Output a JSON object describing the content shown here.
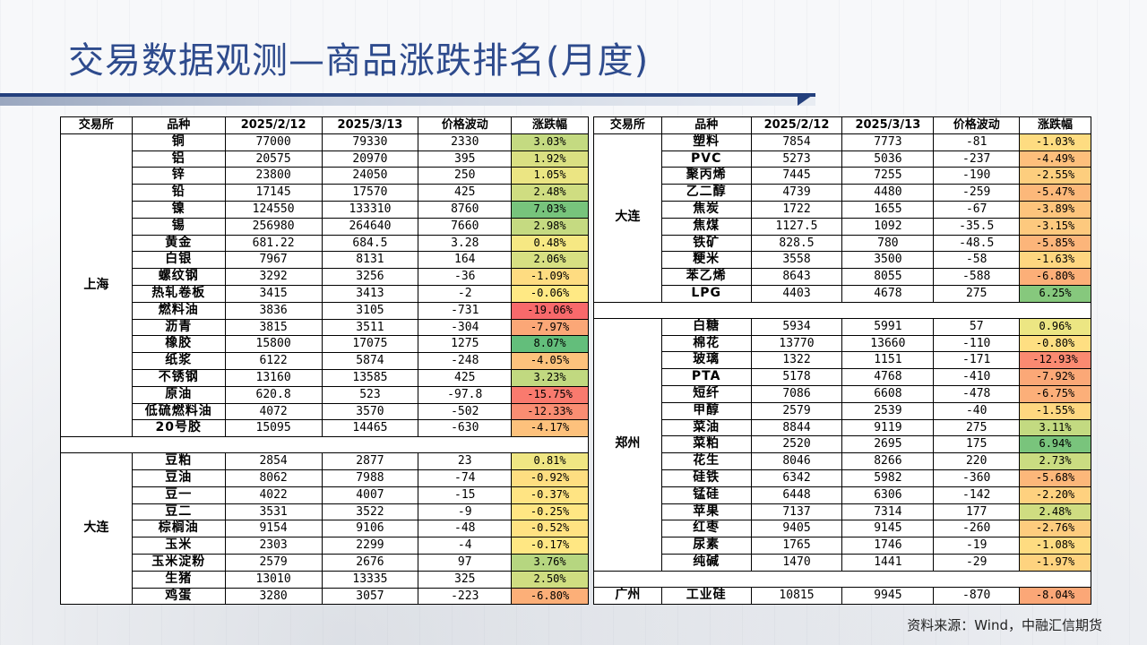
{
  "title": "交易数据观测—商品涨跌排名(月度)",
  "source": "资料来源：Wind，中融汇信期货",
  "headers": [
    "交易所",
    "品种",
    "2025/2/12",
    "2025/3/13",
    "价格波动",
    "涨跌幅"
  ],
  "colors": {
    "green": "#63be7b",
    "yellow": "#ffeb84",
    "red": "#f8696b",
    "title": "#2e4b8d"
  },
  "left_groups": [
    {
      "exchange": "上海",
      "rows": [
        [
          "铜",
          "77000",
          "79330",
          "2330",
          "3.03%",
          3.03
        ],
        [
          "铝",
          "20575",
          "20970",
          "395",
          "1.92%",
          1.92
        ],
        [
          "锌",
          "23800",
          "24050",
          "250",
          "1.05%",
          1.05
        ],
        [
          "铅",
          "17145",
          "17570",
          "425",
          "2.48%",
          2.48
        ],
        [
          "镍",
          "124550",
          "133310",
          "8760",
          "7.03%",
          7.03
        ],
        [
          "锡",
          "256980",
          "264640",
          "7660",
          "2.98%",
          2.98
        ],
        [
          "黄金",
          "681.22",
          "684.5",
          "3.28",
          "0.48%",
          0.48
        ],
        [
          "白银",
          "7967",
          "8131",
          "164",
          "2.06%",
          2.06
        ],
        [
          "螺纹钢",
          "3292",
          "3256",
          "-36",
          "-1.09%",
          -1.09
        ],
        [
          "热轧卷板",
          "3415",
          "3413",
          "-2",
          "-0.06%",
          -0.06
        ],
        [
          "燃料油",
          "3836",
          "3105",
          "-731",
          "-19.06%",
          -19.06
        ],
        [
          "沥青",
          "3815",
          "3511",
          "-304",
          "-7.97%",
          -7.97
        ],
        [
          "橡胶",
          "15800",
          "17075",
          "1275",
          "8.07%",
          8.07
        ],
        [
          "纸浆",
          "6122",
          "5874",
          "-248",
          "-4.05%",
          -4.05
        ],
        [
          "不锈钢",
          "13160",
          "13585",
          "425",
          "3.23%",
          3.23
        ],
        [
          "原油",
          "620.8",
          "523",
          "-97.8",
          "-15.75%",
          -15.75
        ],
        [
          "低硫燃料油",
          "4072",
          "3570",
          "-502",
          "-12.33%",
          -12.33
        ],
        [
          "20号胶",
          "15095",
          "14465",
          "-630",
          "-4.17%",
          -4.17
        ]
      ]
    },
    {
      "exchange": "大连",
      "rows": [
        [
          "豆粕",
          "2854",
          "2877",
          "23",
          "0.81%",
          0.81
        ],
        [
          "豆油",
          "8062",
          "7988",
          "-74",
          "-0.92%",
          -0.92
        ],
        [
          "豆一",
          "4022",
          "4007",
          "-15",
          "-0.37%",
          -0.37
        ],
        [
          "豆二",
          "3531",
          "3522",
          "-9",
          "-0.25%",
          -0.25
        ],
        [
          "棕榈油",
          "9154",
          "9106",
          "-48",
          "-0.52%",
          -0.52
        ],
        [
          "玉米",
          "2303",
          "2299",
          "-4",
          "-0.17%",
          -0.17
        ],
        [
          "玉米淀粉",
          "2579",
          "2676",
          "97",
          "3.76%",
          3.76
        ],
        [
          "生猪",
          "13010",
          "13335",
          "325",
          "2.50%",
          2.5
        ],
        [
          "鸡蛋",
          "3280",
          "3057",
          "-223",
          "-6.80%",
          -6.8
        ]
      ]
    }
  ],
  "right_groups": [
    {
      "exchange": "大连",
      "rows": [
        [
          "塑料",
          "7854",
          "7773",
          "-81",
          "-1.03%",
          -1.03
        ],
        [
          "PVC",
          "5273",
          "5036",
          "-237",
          "-4.49%",
          -4.49
        ],
        [
          "聚丙烯",
          "7445",
          "7255",
          "-190",
          "-2.55%",
          -2.55
        ],
        [
          "乙二醇",
          "4739",
          "4480",
          "-259",
          "-5.47%",
          -5.47
        ],
        [
          "焦炭",
          "1722",
          "1655",
          "-67",
          "-3.89%",
          -3.89
        ],
        [
          "焦煤",
          "1127.5",
          "1092",
          "-35.5",
          "-3.15%",
          -3.15
        ],
        [
          "铁矿",
          "828.5",
          "780",
          "-48.5",
          "-5.85%",
          -5.85
        ],
        [
          "粳米",
          "3558",
          "3500",
          "-58",
          "-1.63%",
          -1.63
        ],
        [
          "苯乙烯",
          "8643",
          "8055",
          "-588",
          "-6.80%",
          -6.8
        ],
        [
          "LPG",
          "4403",
          "4678",
          "275",
          "6.25%",
          6.25
        ]
      ]
    },
    {
      "exchange": "郑州",
      "rows": [
        [
          "白糖",
          "5934",
          "5991",
          "57",
          "0.96%",
          0.96
        ],
        [
          "棉花",
          "13770",
          "13660",
          "-110",
          "-0.80%",
          -0.8
        ],
        [
          "玻璃",
          "1322",
          "1151",
          "-171",
          "-12.93%",
          -12.93
        ],
        [
          "PTA",
          "5178",
          "4768",
          "-410",
          "-7.92%",
          -7.92
        ],
        [
          "短纤",
          "7086",
          "6608",
          "-478",
          "-6.75%",
          -6.75
        ],
        [
          "甲醇",
          "2579",
          "2539",
          "-40",
          "-1.55%",
          -1.55
        ],
        [
          "菜油",
          "8844",
          "9119",
          "275",
          "3.11%",
          3.11
        ],
        [
          "菜粕",
          "2520",
          "2695",
          "175",
          "6.94%",
          6.94
        ],
        [
          "花生",
          "8046",
          "8266",
          "220",
          "2.73%",
          2.73
        ],
        [
          "硅铁",
          "6342",
          "5982",
          "-360",
          "-5.68%",
          -5.68
        ],
        [
          "锰硅",
          "6448",
          "6306",
          "-142",
          "-2.20%",
          -2.2
        ],
        [
          "苹果",
          "7137",
          "7314",
          "177",
          "2.48%",
          2.48
        ],
        [
          "红枣",
          "9405",
          "9145",
          "-260",
          "-2.76%",
          -2.76
        ],
        [
          "尿素",
          "1765",
          "1746",
          "-19",
          "-1.08%",
          -1.08
        ],
        [
          "纯碱",
          "1470",
          "1441",
          "-29",
          "-1.97%",
          -1.97
        ]
      ]
    },
    {
      "exchange": "广州",
      "rows": [
        [
          "工业硅",
          "10815",
          "9945",
          "-870",
          "-8.04%",
          -8.04
        ]
      ]
    }
  ]
}
